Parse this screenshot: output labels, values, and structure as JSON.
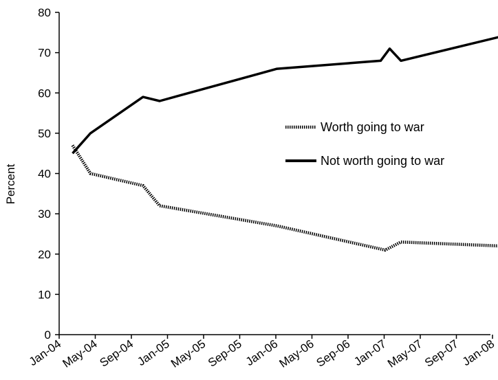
{
  "chart_data": {
    "type": "line",
    "title": "",
    "xlabel": "",
    "ylabel": "Percent",
    "ylim": [
      0,
      80
    ],
    "yticks": [
      "0",
      "10",
      "20",
      "30",
      "40",
      "50",
      "60",
      "70",
      "80"
    ],
    "xticks": [
      "Jan-04",
      "May-04",
      "Sep-04",
      "Jan-05",
      "May-05",
      "Sep-05",
      "Jan-06",
      "May-06",
      "Sep-06",
      "Jan-07",
      "May-07",
      "Sep-07",
      "Jan-08"
    ],
    "grid": false,
    "legend_position": "center-right",
    "series": [
      {
        "name": "Worth going to war",
        "style": "dotted",
        "color": "#000000",
        "points": [
          {
            "x": "2004-02-15",
            "y": 47
          },
          {
            "x": "2004-04-15",
            "y": 40
          },
          {
            "x": "2004-10-10",
            "y": 37
          },
          {
            "x": "2004-12-05",
            "y": 32
          },
          {
            "x": "2006-01-05",
            "y": 27
          },
          {
            "x": "2007-01-05",
            "y": 21
          },
          {
            "x": "2007-02-25",
            "y": 23
          },
          {
            "x": "2008-01-30",
            "y": 22
          }
        ]
      },
      {
        "name": "Not worth going to war",
        "style": "solid",
        "color": "#000000",
        "points": [
          {
            "x": "2004-02-15",
            "y": 45
          },
          {
            "x": "2004-04-15",
            "y": 50
          },
          {
            "x": "2004-10-10",
            "y": 59
          },
          {
            "x": "2004-12-05",
            "y": 58
          },
          {
            "x": "2006-01-05",
            "y": 66
          },
          {
            "x": "2006-12-20",
            "y": 68
          },
          {
            "x": "2007-01-20",
            "y": 71
          },
          {
            "x": "2007-02-25",
            "y": 68
          },
          {
            "x": "2008-01-30",
            "y": 74
          }
        ]
      }
    ]
  }
}
